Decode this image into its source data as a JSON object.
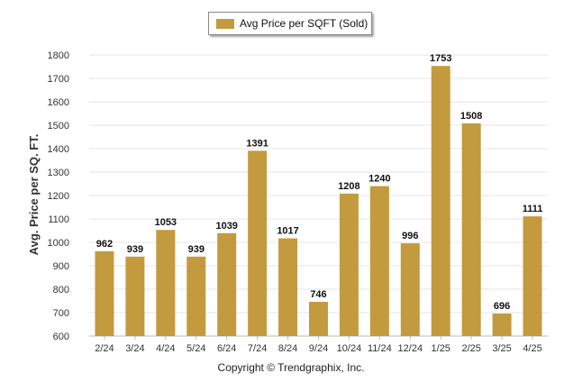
{
  "legend": {
    "label": "Avg Price per SQFT (Sold)"
  },
  "footer": {
    "copyright": "Copyright © Trendgraphix, Inc."
  },
  "colors": {
    "bar": "#C39A3E",
    "grid": "#e6e6e6",
    "text": "#222222"
  },
  "chart_data": {
    "type": "bar",
    "title": "",
    "xlabel": "",
    "ylabel": "Avg. Price per SQ. FT.",
    "ylim": [
      600,
      1800
    ],
    "yticks": [
      600,
      700,
      800,
      900,
      1000,
      1100,
      1200,
      1300,
      1400,
      1500,
      1600,
      1700,
      1800
    ],
    "grid": true,
    "legend_position": "top-center",
    "categories": [
      "2/24",
      "3/24",
      "4/24",
      "5/24",
      "6/24",
      "7/24",
      "8/24",
      "9/24",
      "10/24",
      "11/24",
      "12/24",
      "1/25",
      "2/25",
      "3/25",
      "4/25"
    ],
    "series": [
      {
        "name": "Avg Price per SQFT (Sold)",
        "values": [
          962,
          939,
          1053,
          939,
          1039,
          1391,
          1017,
          746,
          1208,
          1240,
          996,
          1753,
          1508,
          696,
          1111
        ]
      }
    ]
  }
}
